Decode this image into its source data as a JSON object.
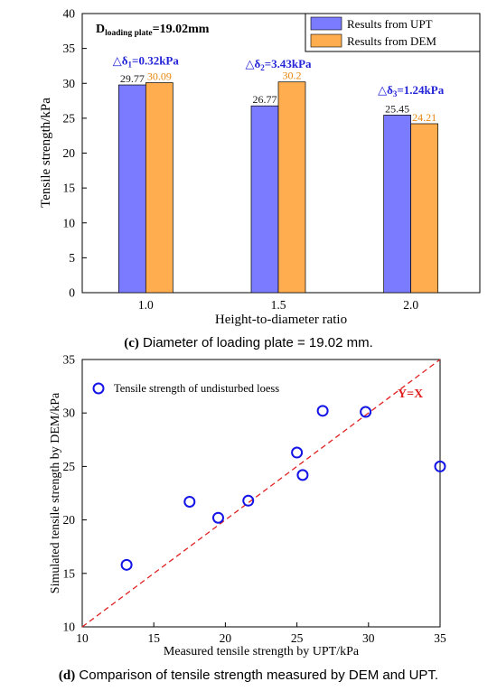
{
  "chart_data": [
    {
      "type": "bar",
      "panel": "c",
      "caption_prefix": "(c)",
      "caption_text": " Diameter of loading plate = 19.02 mm.",
      "annotation_main": "D",
      "annotation_sub": "loading plate",
      "annotation_tail": "=19.02mm",
      "xlabel": "Height-to-diameter ratio",
      "ylabel": "Tensile strength/kPa",
      "ylim": [
        0,
        40
      ],
      "yticks": [
        "0",
        "5",
        "10",
        "15",
        "20",
        "25",
        "30",
        "35",
        "40"
      ],
      "categories": [
        "1.0",
        "1.5",
        "2.0"
      ],
      "series": [
        {
          "name": "Results from UPT",
          "values": [
            29.77,
            26.77,
            25.45
          ],
          "labels": [
            "29.77",
            "26.77",
            "25.45"
          ],
          "color": "#7b7bff"
        },
        {
          "name": "Results from DEM",
          "values": [
            30.09,
            30.2,
            24.21
          ],
          "labels": [
            "30.09",
            "30.2",
            "24.21"
          ],
          "color": "#ffad4f"
        }
      ],
      "differences": [
        {
          "prefix": "△δ",
          "sub": "1",
          "text": "=0.32kPa",
          "y": 32.4
        },
        {
          "prefix": "△δ",
          "sub": "2",
          "text": "=3.43kPa",
          "y": 32.0
        },
        {
          "prefix": "△δ",
          "sub": "3",
          "text": "=1.24kPa",
          "y": 28.2
        }
      ],
      "legend_position": "top-right",
      "colors": {
        "upt_label": "#1a1a1a",
        "dem_label": "#e8870e",
        "annotation": "#2424d8"
      }
    },
    {
      "type": "scatter",
      "panel": "d",
      "caption_prefix": "(d)",
      "caption_text": " Comparison of tensile strength measured by DEM and UPT.",
      "xlabel": "Measured tensile strength by UPT/kPa",
      "ylabel": "Simulated tensile strength by DEM/kPa",
      "xlim": [
        10,
        35
      ],
      "ylim": [
        10,
        35
      ],
      "xticks": [
        "10",
        "15",
        "20",
        "25",
        "30",
        "35"
      ],
      "yticks": [
        "10",
        "15",
        "20",
        "25",
        "30",
        "35"
      ],
      "legend_label": "Tensile strength of undisturbed loess",
      "legend_position": "top-left",
      "reference_line_label": "Y=X",
      "points": [
        {
          "x": 13.1,
          "y": 15.8
        },
        {
          "x": 17.5,
          "y": 21.7
        },
        {
          "x": 19.5,
          "y": 20.2
        },
        {
          "x": 21.6,
          "y": 21.8
        },
        {
          "x": 25.0,
          "y": 26.3
        },
        {
          "x": 25.4,
          "y": 24.2
        },
        {
          "x": 26.8,
          "y": 30.2
        },
        {
          "x": 29.8,
          "y": 30.1
        },
        {
          "x": 35.0,
          "y": 25.0
        }
      ],
      "colors": {
        "marker": "#1414e6",
        "reference_line": "#e02020"
      }
    }
  ]
}
